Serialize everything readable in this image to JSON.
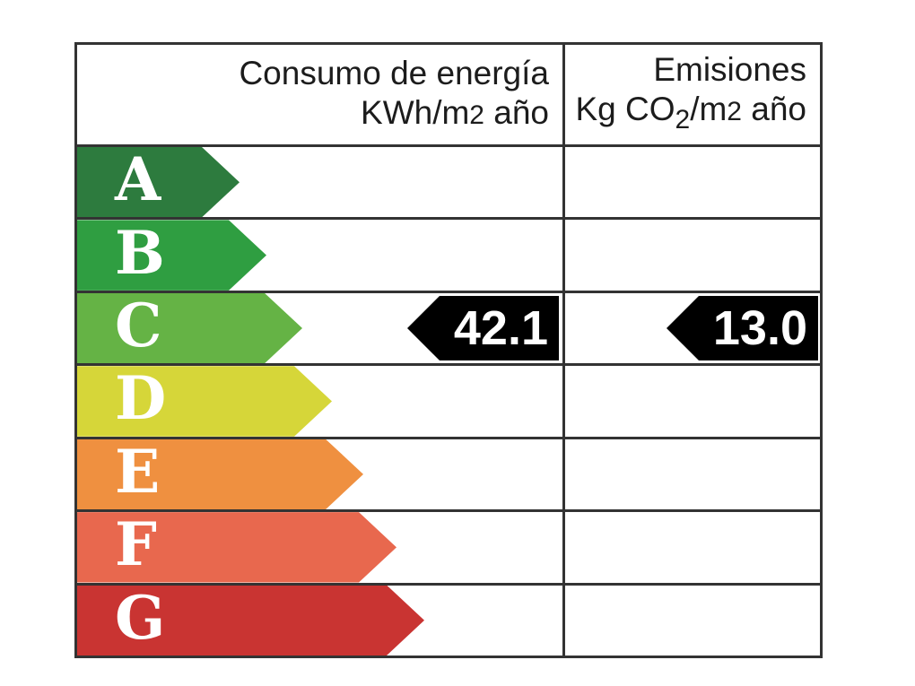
{
  "chart_data": {
    "type": "bar",
    "subtype": "energy-efficiency-rating-label",
    "title": "",
    "categories": [
      "A",
      "B",
      "C",
      "D",
      "E",
      "F",
      "G"
    ],
    "columns": {
      "consumption": {
        "title": "Consumo de energía",
        "unit_prefix": "KWh/m",
        "unit_exponent": "2",
        "unit_suffix": " año"
      },
      "emissions": {
        "title": "Emisiones",
        "unit_prefix": "Kg CO",
        "unit_subscript": "2",
        "unit_mid": "/m",
        "unit_exponent": "2",
        "unit_suffix": " año"
      }
    },
    "ratings": [
      {
        "letter": "A",
        "color": "#2d7b3e",
        "bar_length": 181
      },
      {
        "letter": "B",
        "color": "#2f9e41",
        "bar_length": 211
      },
      {
        "letter": "C",
        "color": "#65b345",
        "bar_length": 251
      },
      {
        "letter": "D",
        "color": "#d6d639",
        "bar_length": 284
      },
      {
        "letter": "E",
        "color": "#ef9040",
        "bar_length": 319
      },
      {
        "letter": "F",
        "color": "#e8684e",
        "bar_length": 356
      },
      {
        "letter": "G",
        "color": "#c93432",
        "bar_length": 387
      }
    ],
    "indicated": {
      "rating": "C",
      "consumption_value": "42.1",
      "emissions_value": "13.0",
      "marker_color": "#000000",
      "value_text_color": "#ffffff"
    },
    "layout": {
      "grid_border_color": "#333333",
      "background_color": "#ffffff",
      "legend": "none"
    }
  }
}
